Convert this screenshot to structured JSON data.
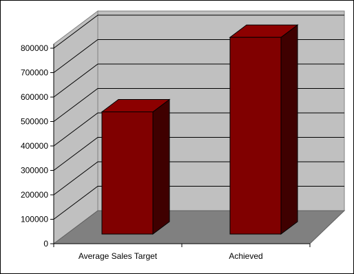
{
  "chart_data": {
    "type": "bar",
    "style": "3d-column",
    "categories": [
      "Average Sales Target",
      "Achieved"
    ],
    "series": [
      {
        "values": [
          500000,
          805000
        ]
      }
    ],
    "ylim": [
      0,
      800000
    ],
    "yticks": [
      0,
      100000,
      200000,
      300000,
      400000,
      500000,
      600000,
      700000,
      800000
    ],
    "ytick_labels": [
      "0",
      "100000",
      "200000",
      "300000",
      "400000",
      "500000",
      "600000",
      "700000",
      "800000"
    ],
    "grid": true,
    "legend": "none",
    "title": "",
    "xlabel": "",
    "ylabel": "",
    "colors": {
      "bar_front": "#800000",
      "bar_side": "#3f0000",
      "bar_top": "#8c0000",
      "wall": "#c0c0c0",
      "floor": "#808080",
      "grid": "#000000",
      "border": "#000000"
    }
  }
}
